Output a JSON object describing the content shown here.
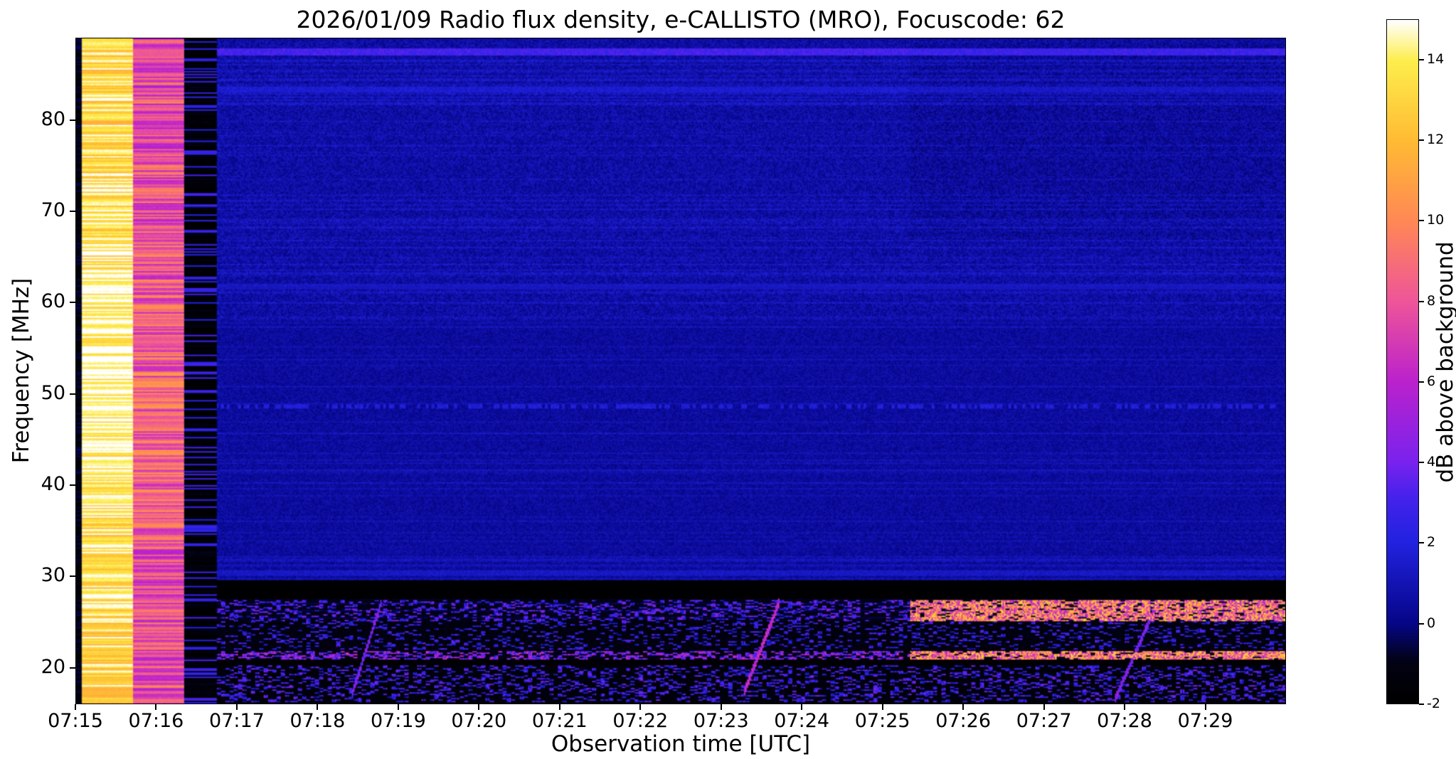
{
  "chart_data": {
    "type": "heatmap",
    "title": "2026/01/09  Radio flux density, e-CALLISTO (MRO), Focuscode: 62",
    "xlabel": "Observation time [UTC]",
    "ylabel": "Frequency [MHz]",
    "colorbar_label": "dB above background",
    "x_ticks": [
      "07:15",
      "07:16",
      "07:17",
      "07:18",
      "07:19",
      "07:20",
      "07:21",
      "07:22",
      "07:23",
      "07:24",
      "07:25",
      "07:26",
      "07:27",
      "07:28",
      "07:29"
    ],
    "x_range_minutes": [
      0,
      15
    ],
    "y_ticks": [
      20,
      30,
      40,
      50,
      60,
      70,
      80
    ],
    "y_range_mhz": [
      16,
      89
    ],
    "colorbar_ticks": [
      -2,
      0,
      2,
      4,
      6,
      8,
      10,
      12,
      14
    ],
    "value_range_db": [
      -2,
      15
    ],
    "grid": false,
    "legend": "colorbar-right",
    "colormap": {
      "name": "gnuplot2-like",
      "stops": [
        [
          0.0,
          "#000000"
        ],
        [
          0.06,
          "#020214"
        ],
        [
          0.118,
          "#06068a"
        ],
        [
          0.235,
          "#2222e0"
        ],
        [
          0.3,
          "#4422ec"
        ],
        [
          0.353,
          "#7a22ee"
        ],
        [
          0.471,
          "#bb22cc"
        ],
        [
          0.588,
          "#ee5599"
        ],
        [
          0.706,
          "#ff8855"
        ],
        [
          0.824,
          "#ffbb33"
        ],
        [
          0.941,
          "#fdee4c"
        ],
        [
          1.0,
          "#ffffff"
        ]
      ]
    },
    "background": {
      "base": 0.38,
      "noise": 1.05,
      "stripe_density": 0.2,
      "stripe_gain": 0.6,
      "zones": [
        {
          "f": [
            58,
            89
          ],
          "dv": 0.22,
          "noise": 1.3
        },
        {
          "f": [
            29.5,
            58
          ],
          "dv": 0.05,
          "noise": 0.95
        },
        {
          "f": [
            16,
            29.5
          ],
          "dv": -1.45,
          "noise": 0.45
        }
      ]
    },
    "features": [
      {
        "type": "hband",
        "name": "low-band-floor",
        "f": [
          16.0,
          20.2
        ],
        "t": [
          0.116,
          1.0
        ],
        "value": -1.4,
        "jitter": 0.5
      },
      {
        "type": "hband",
        "name": "black-gap-20.5",
        "f": [
          20.2,
          20.8
        ],
        "t": [
          0.116,
          1.0
        ],
        "value": -1.8,
        "jitter": 0.2
      },
      {
        "type": "hband",
        "name": "dark-floor-22-25",
        "f": [
          21.7,
          25.0
        ],
        "t": [
          0.116,
          1.0
        ],
        "value": -1.2,
        "jitter": 0.6
      },
      {
        "type": "hband",
        "name": "black-band-27-29",
        "f": [
          27.4,
          29.5
        ],
        "t": [
          0.116,
          1.0
        ],
        "value": -1.9,
        "jitter": 0.15
      },
      {
        "type": "speckle",
        "name": "rfi-17-20",
        "f": [
          16.1,
          20.2
        ],
        "t": [
          0.116,
          1.0
        ],
        "density": 0.3,
        "v": [
          0.5,
          4.5
        ]
      },
      {
        "type": "speckle",
        "name": "rfi-22-25",
        "f": [
          21.8,
          24.9
        ],
        "t": [
          0.116,
          1.0
        ],
        "density": 0.2,
        "v": [
          0.5,
          4.0
        ]
      },
      {
        "type": "speckle",
        "name": "rfi-25-27",
        "f": [
          25.0,
          27.3
        ],
        "t": [
          0.116,
          0.69
        ],
        "density": 0.35,
        "v": [
          0.5,
          5.0
        ]
      },
      {
        "type": "speckle",
        "name": "rfi-25-27-strong",
        "f": [
          25.0,
          27.3
        ],
        "t": [
          0.69,
          1.0
        ],
        "density": 0.85,
        "v": [
          5.0,
          13.5
        ]
      },
      {
        "type": "speckle",
        "name": "rfi-21",
        "f": [
          20.8,
          21.7
        ],
        "t": [
          0.116,
          0.69
        ],
        "density": 0.5,
        "v": [
          1.5,
          7.0
        ]
      },
      {
        "type": "speckle",
        "name": "rfi-21-strong",
        "f": [
          20.8,
          21.7
        ],
        "t": [
          0.69,
          1.0
        ],
        "density": 0.85,
        "v": [
          5.0,
          13.5
        ]
      },
      {
        "type": "hline",
        "name": "carrier-87.6",
        "f": [
          87.2,
          88.0
        ],
        "t": [
          0.0,
          1.0
        ],
        "value": 3.0,
        "jitter": 1.2
      },
      {
        "type": "hline",
        "name": "faint-83.4",
        "f": [
          83.1,
          83.8
        ],
        "t": [
          0.116,
          1.0
        ],
        "value": 1.6,
        "jitter": 0.8
      },
      {
        "type": "hline",
        "name": "faint-61.8",
        "f": [
          61.5,
          62.1
        ],
        "t": [
          0.116,
          1.0
        ],
        "value": 1.2,
        "jitter": 0.6
      },
      {
        "type": "hline",
        "name": "dotted-48.6",
        "f": [
          48.3,
          48.9
        ],
        "t": [
          0.116,
          1.0
        ],
        "value": 1.8,
        "jitter": 1.0,
        "dotted": 0.45
      },
      {
        "type": "hline",
        "name": "faint-30.3",
        "f": [
          30.0,
          30.6
        ],
        "t": [
          0.116,
          1.0
        ],
        "value": 1.3,
        "jitter": 0.7
      },
      {
        "type": "diagonal",
        "name": "ionosonde-sweep-0718",
        "t": [
          0.228,
          0.252
        ],
        "f": [
          17.0,
          27.0
        ],
        "value": 4.0,
        "width": 0.45
      },
      {
        "type": "diagonal",
        "name": "ionosonde-sweep-0723",
        "t": [
          0.552,
          0.582
        ],
        "f": [
          17.0,
          27.2
        ],
        "value": 6.0,
        "width": 0.5
      },
      {
        "type": "diagonal",
        "name": "ionosonde-sweep-0728",
        "t": [
          0.86,
          0.893
        ],
        "f": [
          16.5,
          26.5
        ],
        "value": 4.0,
        "width": 0.45
      },
      {
        "type": "region",
        "name": "upper-right-shade",
        "t": [
          0.69,
          1.0
        ],
        "f": [
          67.0,
          88.6
        ],
        "dv": -0.2
      },
      {
        "type": "column",
        "name": "left-edge-dark",
        "t": [
          0.0,
          0.004
        ],
        "base": -1.2,
        "row_jitter": 0.8,
        "seed": 14.4
      },
      {
        "type": "column",
        "name": "calibration-bright",
        "t": [
          0.004,
          0.047
        ],
        "base": 13.2,
        "row_jitter": 1.8,
        "seed": 11.1,
        "bump": {
          "center": 52,
          "sigma": 17,
          "amp": 1.6
        }
      },
      {
        "type": "column",
        "name": "calibration-pink",
        "t": [
          0.047,
          0.089
        ],
        "base": 7.6,
        "row_jitter": 2.2,
        "seed": 12.2,
        "bump": {
          "center": 50,
          "sigma": 18,
          "amp": 1.0
        }
      },
      {
        "type": "column",
        "name": "calibration-dark",
        "t": [
          0.089,
          0.116
        ],
        "base": -1.6,
        "row_jitter": 0.6,
        "seed": 13.3,
        "blue_rows": 0.22,
        "blue_v": 2.5
      }
    ]
  }
}
